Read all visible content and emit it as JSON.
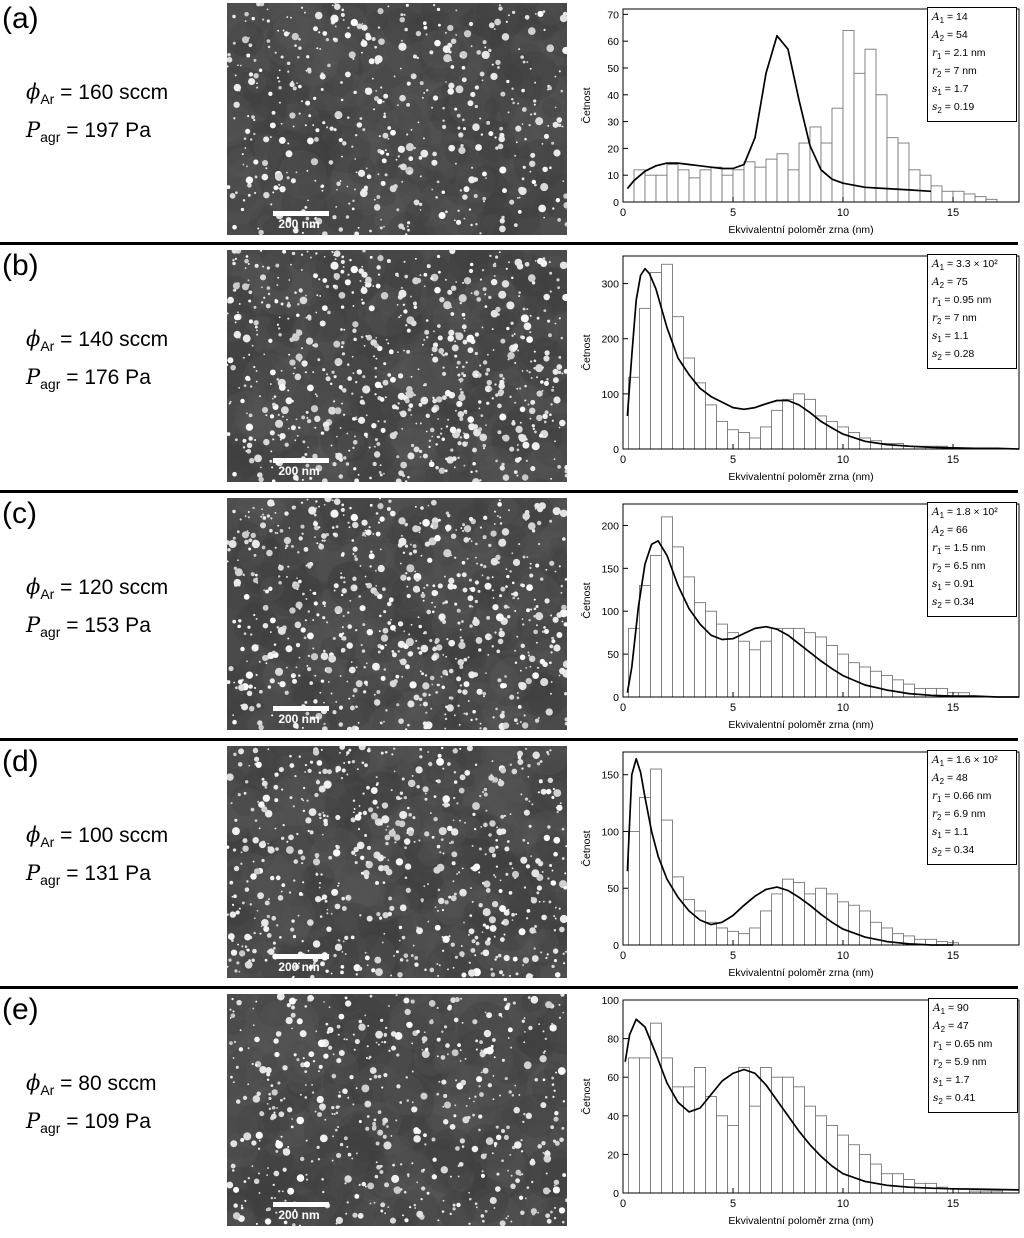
{
  "panels": [
    {
      "id": "(a)",
      "flow_value": "160 sccm",
      "pressure_value": "197 Pa",
      "scale_label": "200 nm",
      "particle_density": 0.5,
      "legend": [
        {
          "sym": "A",
          "sub": "1",
          "val": "14"
        },
        {
          "sym": "A",
          "sub": "2",
          "val": "54"
        },
        {
          "sym": "r",
          "sub": "1",
          "val": "2.1 nm"
        },
        {
          "sym": "r",
          "sub": "2",
          "val": "7 nm"
        },
        {
          "sym": "s",
          "sub": "1",
          "val": "1.7"
        },
        {
          "sym": "s",
          "sub": "2",
          "val": "0.19"
        }
      ]
    },
    {
      "id": "(b)",
      "flow_value": "140 sccm",
      "pressure_value": "176 Pa",
      "scale_label": "200 nm",
      "particle_density": 1.0,
      "legend": [
        {
          "sym": "A",
          "sub": "1",
          "val": "3.3 × 10²"
        },
        {
          "sym": "A",
          "sub": "2",
          "val": "75"
        },
        {
          "sym": "r",
          "sub": "1",
          "val": "0.95 nm"
        },
        {
          "sym": "r",
          "sub": "2",
          "val": "7 nm"
        },
        {
          "sym": "s",
          "sub": "1",
          "val": "1.1"
        },
        {
          "sym": "s",
          "sub": "2",
          "val": "0.28"
        }
      ]
    },
    {
      "id": "(c)",
      "flow_value": "120 sccm",
      "pressure_value": "153 Pa",
      "scale_label": "200 nm",
      "particle_density": 1.0,
      "legend": [
        {
          "sym": "A",
          "sub": "1",
          "val": "1.8 × 10²"
        },
        {
          "sym": "A",
          "sub": "2",
          "val": "66"
        },
        {
          "sym": "r",
          "sub": "1",
          "val": "1.5 nm"
        },
        {
          "sym": "r",
          "sub": "2",
          "val": "6.5 nm"
        },
        {
          "sym": "s",
          "sub": "1",
          "val": "0.91"
        },
        {
          "sym": "s",
          "sub": "2",
          "val": "0.34"
        }
      ]
    },
    {
      "id": "(d)",
      "flow_value": "100 sccm",
      "pressure_value": "131 Pa",
      "scale_label": "200 nm",
      "particle_density": 0.8,
      "legend": [
        {
          "sym": "A",
          "sub": "1",
          "val": "1.6 × 10²"
        },
        {
          "sym": "A",
          "sub": "2",
          "val": "48"
        },
        {
          "sym": "r",
          "sub": "1",
          "val": "0.66 nm"
        },
        {
          "sym": "r",
          "sub": "2",
          "val": "6.9 nm"
        },
        {
          "sym": "s",
          "sub": "1",
          "val": "1.1"
        },
        {
          "sym": "s",
          "sub": "2",
          "val": "0.34"
        }
      ]
    },
    {
      "id": "(e)",
      "flow_value": "80 sccm",
      "pressure_value": "109 Pa",
      "scale_label": "200 nm",
      "particle_density": 0.6,
      "legend": [
        {
          "sym": "A",
          "sub": "1",
          "val": "90"
        },
        {
          "sym": "A",
          "sub": "2",
          "val": "47"
        },
        {
          "sym": "r",
          "sub": "1",
          "val": "0.65 nm"
        },
        {
          "sym": "r",
          "sub": "2",
          "val": "5.9 nm"
        },
        {
          "sym": "s",
          "sub": "1",
          "val": "1.7"
        },
        {
          "sym": "s",
          "sub": "2",
          "val": "0.41"
        }
      ]
    }
  ],
  "cond_labels": {
    "flow_symbol": "ϕ",
    "flow_sub": "Ar",
    "pressure_symbol": "P",
    "pressure_sub": "agr",
    "eq": " = "
  },
  "chart_data": [
    {
      "type": "bar",
      "xlabel": "Ekvivalentní poloměr zrna (nm)",
      "ylabel": "Četnost",
      "xlim": [
        0,
        18
      ],
      "ylim": [
        0,
        72
      ],
      "xticks": [
        0,
        5,
        10,
        15
      ],
      "yticks": [
        0,
        10,
        20,
        30,
        40,
        50,
        60,
        70
      ],
      "bin_start": 0,
      "bin_width": 0.5,
      "values": [
        0,
        12,
        10,
        10,
        14,
        12,
        9,
        12,
        13,
        10,
        12,
        15,
        13,
        16,
        18,
        12,
        22,
        28,
        22,
        35,
        64,
        48,
        57,
        40,
        24,
        22,
        12,
        10,
        6,
        4,
        4,
        3,
        2,
        1,
        0,
        0,
        0,
        0
      ],
      "fit_x": [
        0.2,
        0.5,
        1,
        1.5,
        2,
        2.5,
        3,
        3.5,
        4,
        4.5,
        5,
        5.5,
        6,
        6.5,
        7,
        7.5,
        8,
        8.5,
        9,
        9.5,
        10,
        11,
        12,
        13,
        14
      ],
      "fit_y": [
        5,
        8,
        11.5,
        13.5,
        14.5,
        14.5,
        14,
        13.5,
        13,
        12.5,
        12.5,
        14,
        24,
        48,
        62,
        57,
        38,
        21,
        12,
        8.5,
        7,
        5.5,
        5,
        4.5,
        4
      ],
      "grid": false
    },
    {
      "type": "bar",
      "xlabel": "Ekvivalentní poloměr zrna (nm)",
      "ylabel": "Četnost",
      "xlim": [
        0,
        18
      ],
      "ylim": [
        0,
        350
      ],
      "xticks": [
        0,
        5,
        10,
        15
      ],
      "yticks": [
        0,
        100,
        200,
        300
      ],
      "bin_start": 0.25,
      "bin_width": 0.5,
      "values": [
        130,
        255,
        320,
        335,
        240,
        165,
        120,
        80,
        50,
        35,
        30,
        20,
        40,
        70,
        90,
        100,
        90,
        60,
        50,
        40,
        30,
        20,
        15,
        10,
        10,
        5,
        5,
        5,
        5,
        0,
        0,
        0,
        0,
        0,
        0,
        0
      ],
      "fit_x": [
        0.2,
        0.4,
        0.6,
        0.8,
        1,
        1.2,
        1.5,
        2,
        2.5,
        3,
        3.5,
        4,
        4.5,
        5,
        5.5,
        6,
        6.5,
        7,
        7.5,
        8,
        8.5,
        9,
        9.5,
        10,
        11,
        12,
        13,
        14,
        15,
        16,
        17,
        18
      ],
      "fit_y": [
        60,
        170,
        270,
        315,
        327,
        318,
        290,
        220,
        165,
        135,
        110,
        95,
        85,
        75,
        72,
        75,
        82,
        88,
        88,
        80,
        66,
        50,
        38,
        27,
        14,
        8,
        5,
        3,
        2,
        1,
        1,
        0
      ],
      "grid": false
    },
    {
      "type": "bar",
      "xlabel": "Ekvivalentní poloměr zrna (nm)",
      "ylabel": "Četnost",
      "xlim": [
        0,
        18
      ],
      "ylim": [
        0,
        225
      ],
      "xticks": [
        0,
        5,
        10,
        15
      ],
      "yticks": [
        0,
        50,
        100,
        150,
        200
      ],
      "bin_start": 0.25,
      "bin_width": 0.5,
      "values": [
        80,
        130,
        165,
        210,
        175,
        140,
        110,
        100,
        85,
        75,
        65,
        55,
        65,
        80,
        80,
        80,
        75,
        70,
        60,
        50,
        40,
        35,
        30,
        25,
        20,
        15,
        10,
        10,
        10,
        5,
        5,
        0,
        0,
        0,
        0,
        0
      ],
      "fit_x": [
        0.2,
        0.4,
        0.7,
        1,
        1.3,
        1.6,
        2,
        2.5,
        3,
        3.5,
        4,
        4.5,
        5,
        5.5,
        6,
        6.5,
        7,
        7.5,
        8,
        8.5,
        9,
        9.5,
        10,
        11,
        12,
        13,
        14,
        15,
        16,
        17,
        18
      ],
      "fit_y": [
        5,
        35,
        105,
        155,
        178,
        182,
        165,
        130,
        103,
        85,
        72,
        67,
        68,
        74,
        80,
        82,
        79,
        72,
        62,
        52,
        42,
        33,
        25,
        14,
        8,
        4,
        2,
        1,
        1,
        0,
        0
      ],
      "grid": false
    },
    {
      "type": "bar",
      "xlabel": "Ekvivalentní poloměr zrna (nm)",
      "ylabel": "Četnost",
      "xlim": [
        0,
        18
      ],
      "ylim": [
        0,
        170
      ],
      "xticks": [
        0,
        5,
        10,
        15
      ],
      "yticks": [
        0,
        50,
        100,
        150
      ],
      "bin_start": 0.25,
      "bin_width": 0.5,
      "values": [
        100,
        130,
        155,
        110,
        60,
        40,
        30,
        20,
        15,
        12,
        10,
        15,
        30,
        45,
        58,
        55,
        45,
        50,
        45,
        38,
        35,
        30,
        20,
        15,
        10,
        8,
        5,
        5,
        3,
        2,
        0,
        0,
        0,
        0,
        0,
        0
      ],
      "fit_x": [
        0.2,
        0.4,
        0.6,
        0.8,
        1,
        1.3,
        1.6,
        2,
        2.5,
        3,
        3.5,
        4,
        4.5,
        5,
        5.5,
        6,
        6.5,
        7,
        7.5,
        8,
        8.5,
        9,
        9.5,
        10,
        11,
        12,
        13,
        14,
        15
      ],
      "fit_y": [
        65,
        150,
        164,
        152,
        130,
        100,
        78,
        58,
        42,
        30,
        22,
        18,
        20,
        26,
        35,
        43,
        49,
        51,
        48,
        42,
        35,
        27,
        20,
        14,
        7,
        3,
        1,
        0,
        0
      ],
      "grid": false
    },
    {
      "type": "bar",
      "xlabel": "Ekvivalentní poloměr zrna (nm)",
      "ylabel": "Četnost",
      "xlim": [
        0,
        18
      ],
      "ylim": [
        0,
        100
      ],
      "xticks": [
        0,
        5,
        10,
        15
      ],
      "yticks": [
        0,
        20,
        40,
        60,
        80,
        100
      ],
      "bin_start": 0.25,
      "bin_width": 0.5,
      "values": [
        70,
        70,
        88,
        70,
        55,
        55,
        65,
        50,
        40,
        35,
        65,
        45,
        65,
        60,
        60,
        55,
        45,
        40,
        35,
        30,
        25,
        20,
        15,
        10,
        10,
        7,
        5,
        5,
        3,
        2,
        2,
        1,
        1,
        1,
        0,
        0
      ],
      "fit_x": [
        0.1,
        0.3,
        0.6,
        1,
        1.5,
        2,
        2.5,
        3,
        3.5,
        4,
        4.5,
        5,
        5.5,
        6,
        6.5,
        7,
        7.5,
        8,
        8.5,
        9,
        9.5,
        10,
        11,
        12,
        13,
        14,
        15,
        16,
        17,
        18
      ],
      "fit_y": [
        68,
        82,
        90,
        86,
        72,
        57,
        47,
        42,
        44,
        51,
        58,
        62,
        64,
        62,
        56,
        48,
        40,
        32,
        25,
        19,
        14,
        10,
        6,
        4,
        3,
        2.5,
        2.2,
        2,
        1.8,
        1.6
      ],
      "grid": false
    }
  ]
}
